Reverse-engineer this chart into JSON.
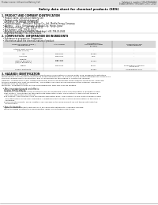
{
  "bg_color": "#ffffff",
  "header_left": "Product name: Lithium Ion Battery Cell",
  "header_right_line1": "Substance number: 580-049-00018",
  "header_right_line2": "Establishment / Revision: Dec.7,2010",
  "title": "Safety data sheet for chemical products (SDS)",
  "section1_title": "1. PRODUCT AND COMPANY IDENTIFICATION",
  "section1_lines": [
    "  • Product name: Lithium Ion Battery Cell",
    "  • Product code: Cylindrical-type cell",
    "    (UR18650J, UR18650A, UR18650A)",
    "  • Company name:    Panasonic Energy Co., Ltd.  Mobile Energy Company",
    "  • Address:    2221,  Kamokouran, Sumoto-City, Hyogo, Japan",
    "  • Telephone number:   +81-799-26-4111",
    "  • Fax number:  +81-799-26-4123",
    "  • Emergency telephone number (Weekdays) +81-799-26-2642",
    "    (Night and Holiday) +81-799-26-4101"
  ],
  "section2_title": "2. COMPOSITION / INFORMATION ON INGREDIENTS",
  "section2_sub1": "  • Substance or preparation: Preparation",
  "section2_sub2": "  • Information about the chemical nature of product:",
  "th1": "Common chemical name /\n  Several name",
  "th2": "CAS number",
  "th3": "Concentration /\nConcentration range\n(30-80%)",
  "th4": "Classification and\nhazard labeling",
  "table_rows": [
    [
      "Lithium cobalt complex\n(LiMn-Co-NiO₂)",
      "-",
      "-",
      "-"
    ],
    [
      "Iron",
      "7439-89-6",
      "10-25%",
      "-"
    ],
    [
      "Aluminum",
      "7429-90-5",
      "2-6%",
      "-"
    ],
    [
      "Graphite\n(Made in graphite-1\n(A/B) or graphite-2)",
      "7782-42-5\n7782-44-0",
      "10-20%",
      "-"
    ],
    [
      "Copper",
      "7440-50-8",
      "5-10%",
      "Sensitization of the skin\ngroup No.2"
    ],
    [
      "Organic electrolyte",
      "-",
      "10-25%",
      "Inflammation liquid"
    ]
  ],
  "section3_title": "3. HAZARDS IDENTIFICATION",
  "section3_lines": [
    "For this battery cell, chemical materials are stored in a hermetically sealed metal case, designed to withstand",
    "temperatures and pressure environments during intended use. As a result, during normal intended use, there is no",
    "physical changes due to evaporation and no occurrence of toxic gases or electrolyte leakage.",
    "However, if exposed to a fire, added mechanical shocks, decomposed, when internal shorts occur, miss-use,",
    "the gas releases and heat (is operated). The battery cell case will be punched at the cathode, hazardous",
    "materials may be released.",
    "Moreover, if heated strongly by the surrounding fire, toxic gas may be emitted."
  ],
  "s3_bullet1": "  • Most important hazard and effects:",
  "s3_health_title": "    Human health effects:",
  "s3_health_lines": [
    "    Inhalation:  The release of the electrolyte has an anesthesia action and stimulates a respiratory tract.",
    "    Skin contact:  The release of the electrolyte stimulates a skin. The electrolyte skin contact causes a",
    "      sore and stimulation on the skin.",
    "    Eye contact:  The release of the electrolyte stimulates eyes. The electrolyte eye contact causes a sore",
    "      and stimulation on the eye. Especially, a substance that causes a strong inflammation of the eyes is",
    "      contained.",
    "    Environmental effects: Since a battery cell remains in the environment, do not throw out it into the",
    "      environment."
  ],
  "s3_specific": "  • Specific hazards:",
  "s3_specific_lines": [
    "    If the electrolyte contacts with water, it will generate detrimental hydrogen fluoride.",
    "    Since the liquid electrolyte is inflammation liquid, do not bring close to fire."
  ]
}
